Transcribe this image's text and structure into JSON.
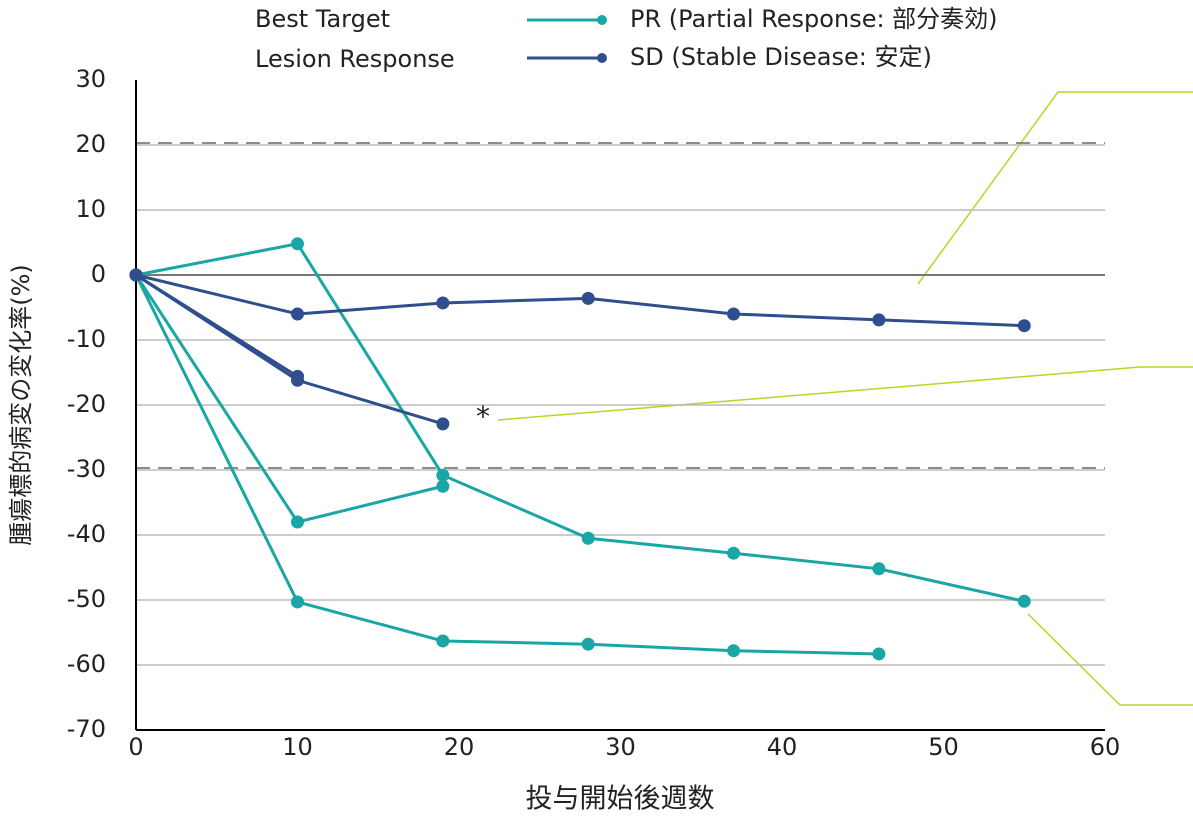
{
  "chart_data": {
    "type": "line",
    "x_label": "投与開始後週数",
    "y_label": "腫瘍標的病変の変化率(%)",
    "legend_title": [
      "Best Target",
      "Lesion Response"
    ],
    "xlim": [
      0,
      60
    ],
    "xticks": [
      0,
      10,
      20,
      30,
      40,
      50,
      60
    ],
    "ylim": [
      -70,
      30
    ],
    "yticks": [
      -70,
      -60,
      -50,
      -40,
      -30,
      -20,
      -10,
      0,
      10,
      20,
      30
    ],
    "grid": true,
    "reference_lines": [
      20,
      -30
    ],
    "annotation": "*",
    "series": [
      {
        "name": "PR (Partial Response: 部分奏効)",
        "color": "#1aa6a4",
        "lines": [
          {
            "x": [
              0,
              10,
              19,
              28,
              37,
              46,
              55
            ],
            "values": [
              0,
              4.8,
              -30.8,
              -40.5,
              -42.8,
              -45.2,
              -50.2
            ]
          },
          {
            "x": [
              0,
              10,
              19
            ],
            "values": [
              0,
              -38,
              -32.5
            ]
          },
          {
            "x": [
              0,
              10,
              19,
              28,
              37,
              46
            ],
            "values": [
              0,
              -50.3,
              -56.3,
              -56.8,
              -57.8,
              -58.3
            ]
          }
        ]
      },
      {
        "name": "SD (Stable Disease: 安定)",
        "color": "#2e4e8e",
        "lines": [
          {
            "x": [
              0,
              10,
              19,
              28,
              37,
              46,
              55
            ],
            "values": [
              0,
              -6,
              -4.3,
              -3.6,
              -6,
              -6.9,
              -7.8
            ]
          },
          {
            "x": [
              0,
              10
            ],
            "values": [
              0,
              -15.6
            ]
          },
          {
            "x": [
              0,
              10,
              19
            ],
            "values": [
              0,
              -16.2,
              -22.9
            ]
          }
        ]
      }
    ]
  }
}
